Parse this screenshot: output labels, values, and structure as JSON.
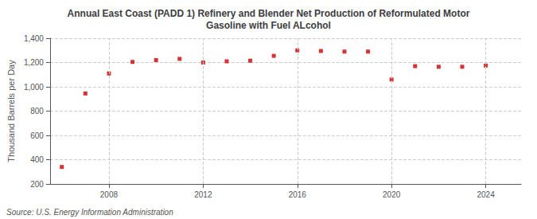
{
  "chart_data": {
    "type": "scatter",
    "title": "Annual East Coast (PADD 1) Refinery and Blender Net Production of Reformulated Motor\nGasoline with Fuel ALcohol",
    "ylabel": "Thousand Barrels per Day",
    "annotation": "Source: U.S. Energy Information Administration",
    "x": [
      2006,
      2007,
      2008,
      2009,
      2010,
      2011,
      2012,
      2013,
      2014,
      2015,
      2016,
      2017,
      2018,
      2019,
      2020,
      2021,
      2022,
      2023,
      2024
    ],
    "values": [
      340,
      945,
      1110,
      1205,
      1220,
      1230,
      1200,
      1210,
      1215,
      1255,
      1300,
      1295,
      1290,
      1290,
      1060,
      1170,
      1165,
      1165,
      1175
    ],
    "color": "#cc0000",
    "marker": "square",
    "xlim": [
      2005.5,
      2025.5
    ],
    "xticks": [
      2008,
      2012,
      2016,
      2020,
      2024
    ],
    "ylim": [
      200,
      1400
    ],
    "yticks": [
      200,
      400,
      600,
      800,
      {
        "value": 1000,
        "label": "1,000"
      },
      {
        "value": 1200,
        "label": "1,200"
      },
      {
        "value": 1400,
        "label": "1,400"
      }
    ],
    "grid": true
  }
}
